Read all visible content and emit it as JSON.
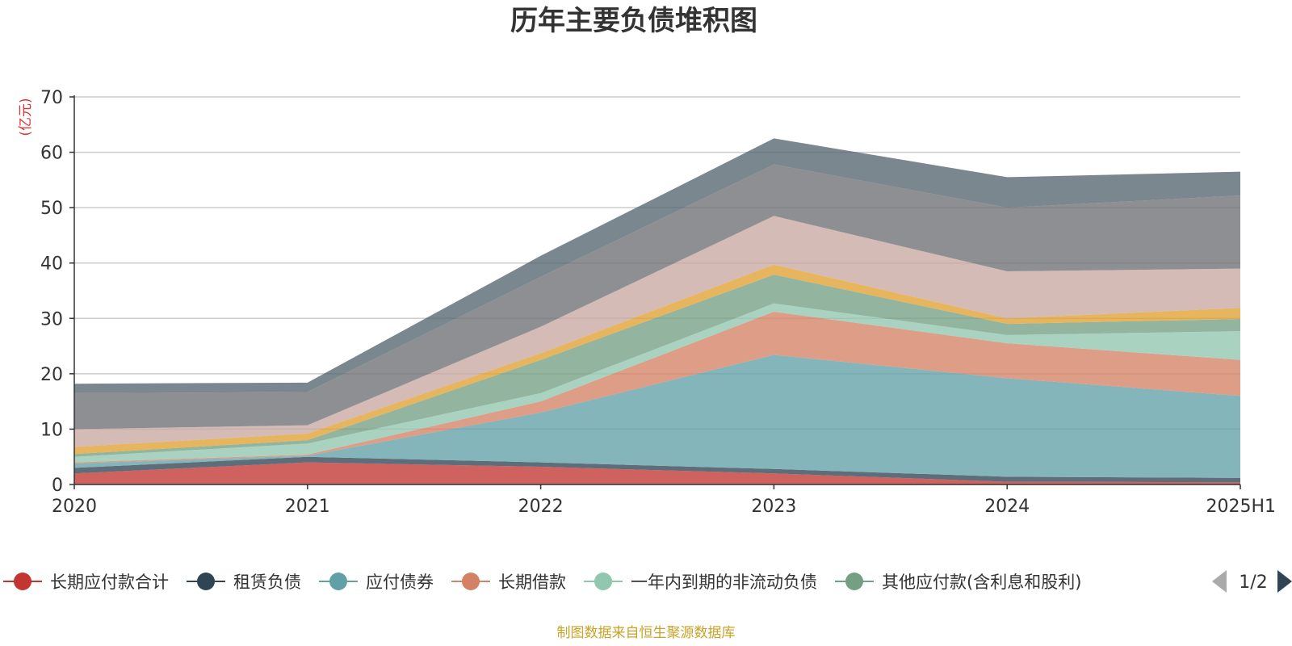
{
  "chart_data": {
    "type": "area",
    "title": "历年主要负债堆积图",
    "unit_label": "(亿元)",
    "x": [
      "2020",
      "2021",
      "2022",
      "2023",
      "2024",
      "2025H1"
    ],
    "ylim": [
      0,
      70
    ],
    "yticks": [
      "0",
      "10",
      "20",
      "30",
      "40",
      "50",
      "60",
      "70"
    ],
    "grid": true,
    "legend_position": "bottom",
    "series": [
      {
        "name": "长期应付款合计",
        "color": "#c23531",
        "values": [
          2.0,
          4.0,
          3.2,
          2.0,
          0.5,
          0.4
        ]
      },
      {
        "name": "租赁负债",
        "color": "#2f4554",
        "values": [
          1.0,
          1.0,
          0.8,
          0.8,
          0.9,
          0.8
        ]
      },
      {
        "name": "应付债券",
        "color": "#61a0a8",
        "values": [
          0.8,
          0.2,
          9.0,
          20.6,
          17.8,
          14.8
        ]
      },
      {
        "name": "长期借款",
        "color": "#d48265",
        "values": [
          0.2,
          0.2,
          2.0,
          7.8,
          6.3,
          6.5
        ]
      },
      {
        "name": "一年内到期的非流动负债",
        "color": "#91c7ae",
        "values": [
          1.0,
          2.0,
          1.5,
          1.5,
          1.5,
          5.2
        ]
      },
      {
        "name": "其他应付款(含利息和股利)",
        "color": "#749f83",
        "values": [
          0.5,
          0.6,
          6.0,
          5.2,
          2.0,
          2.2
        ]
      },
      {
        "name": "",
        "color": "#e0a030",
        "values": [
          1.3,
          1.2,
          1.2,
          1.8,
          1.0,
          2.0
        ]
      },
      {
        "name": "",
        "color": "#c8a8a0",
        "values": [
          3.2,
          1.5,
          4.8,
          8.8,
          8.5,
          7.1
        ]
      },
      {
        "name": "",
        "color": "#6e7074",
        "values": [
          6.5,
          6.0,
          9.0,
          9.3,
          11.5,
          13.2
        ]
      },
      {
        "name": "",
        "color": "#546570",
        "values": [
          1.7,
          1.7,
          3.8,
          4.7,
          5.5,
          4.3
        ]
      }
    ]
  },
  "legend": {
    "page_indicator": "1/2"
  },
  "source_note": "制图数据来自恒生聚源数据库"
}
